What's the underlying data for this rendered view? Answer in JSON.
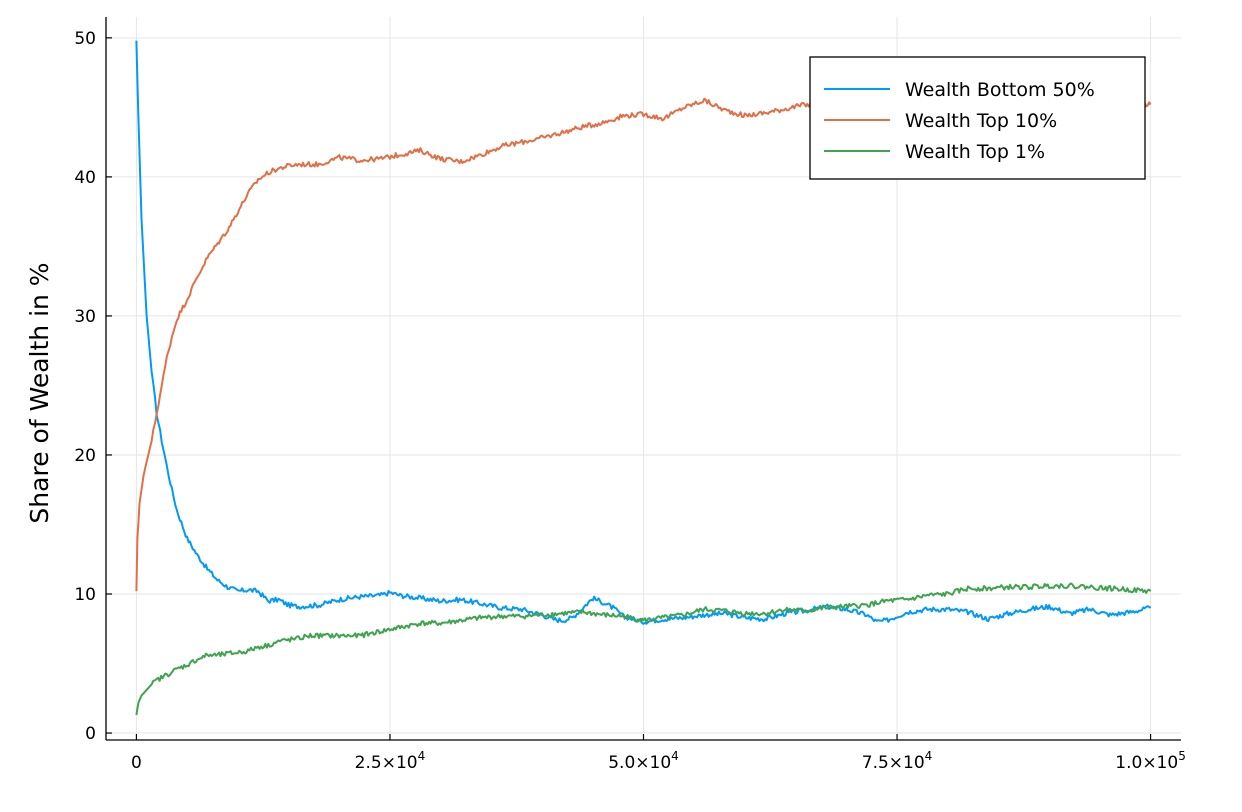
{
  "chart_data": {
    "type": "line",
    "title": "",
    "xlabel": "",
    "ylabel": "Share of Wealth in %",
    "xlim": [
      -3000,
      103000
    ],
    "ylim": [
      -0.5,
      51.5
    ],
    "grid": true,
    "legend_position": "top-right",
    "x_ticks": [
      {
        "value": 0,
        "base": "0",
        "exp": ""
      },
      {
        "value": 25000,
        "base": "2.5×10",
        "exp": "4"
      },
      {
        "value": 50000,
        "base": "5.0×10",
        "exp": "4"
      },
      {
        "value": 75000,
        "base": "7.5×10",
        "exp": "4"
      },
      {
        "value": 100000,
        "base": "1.0×10",
        "exp": "5"
      }
    ],
    "y_ticks": [
      {
        "value": 0,
        "label": "0"
      },
      {
        "value": 10,
        "label": "10"
      },
      {
        "value": 20,
        "label": "20"
      },
      {
        "value": 30,
        "label": "30"
      },
      {
        "value": 40,
        "label": "40"
      },
      {
        "value": 50,
        "label": "50"
      }
    ],
    "series": [
      {
        "name": "Wealth Bottom 50%",
        "color": "#009AF9",
        "x": [
          0,
          200,
          500,
          1000,
          1500,
          2000,
          2500,
          3000,
          3500,
          4000,
          5000,
          6000,
          7000,
          8000,
          9000,
          10000,
          11000,
          12000,
          13000,
          14000,
          15000,
          16000,
          18000,
          20000,
          22000,
          24000,
          25000,
          26000,
          28000,
          30000,
          32000,
          34000,
          36000,
          38000,
          40000,
          41000,
          42000,
          43000,
          44000,
          45000,
          46000,
          47000,
          48000,
          49000,
          50000,
          52000,
          54000,
          56000,
          58000,
          60000,
          62000,
          64000,
          66000,
          68000,
          70000,
          72000,
          73000,
          74000,
          76000,
          78000,
          80000,
          82000,
          84000,
          86000,
          88000,
          90000,
          92000,
          94000,
          96000,
          98000,
          100000
        ],
        "y": [
          49.8,
          44,
          37,
          30,
          26,
          23,
          21,
          19.2,
          17.5,
          16,
          14,
          12.8,
          11.8,
          11,
          10.5,
          10.2,
          10.3,
          10.2,
          9.5,
          9.6,
          9.2,
          9.1,
          9.2,
          9.6,
          9.8,
          9.9,
          10.1,
          9.9,
          9.7,
          9.5,
          9.6,
          9.3,
          9.0,
          8.9,
          8.5,
          8.2,
          8.1,
          8.3,
          9.0,
          9.7,
          9.4,
          9.0,
          8.4,
          8.2,
          8.0,
          8.2,
          8.3,
          8.5,
          8.6,
          8.3,
          8.2,
          8.6,
          8.8,
          9.1,
          8.9,
          8.5,
          8.0,
          8.1,
          8.7,
          8.9,
          8.9,
          8.7,
          8.2,
          8.6,
          8.9,
          9.1,
          8.6,
          8.9,
          8.5,
          8.7,
          9.0
        ]
      },
      {
        "name": "Wealth Top 10%",
        "color": "#E26F46",
        "x": [
          0,
          100,
          300,
          700,
          1000,
          1500,
          2000,
          2500,
          3000,
          3500,
          4000,
          5000,
          6000,
          7000,
          8000,
          9000,
          10000,
          11000,
          12000,
          13000,
          14000,
          15000,
          16000,
          18000,
          20000,
          22000,
          24000,
          26000,
          28000,
          30000,
          32000,
          34000,
          36000,
          38000,
          40000,
          42000,
          44000,
          46000,
          48000,
          50000,
          52000,
          54000,
          56000,
          58000,
          60000,
          62000,
          64000,
          66000,
          68000,
          70000,
          72000,
          74000,
          76000,
          78000,
          80000,
          82000,
          84000,
          86000,
          88000,
          90000,
          92000,
          94000,
          96000,
          98000,
          100000
        ],
        "y": [
          10.2,
          14,
          16.5,
          18.5,
          19.5,
          21,
          23,
          25,
          27,
          28.5,
          29.8,
          31.2,
          32.8,
          34.2,
          35.2,
          36.2,
          37.5,
          38.8,
          39.8,
          40.3,
          40.6,
          40.8,
          40.9,
          40.9,
          41.4,
          41.2,
          41.3,
          41.6,
          41.9,
          41.3,
          41.1,
          41.6,
          42.2,
          42.5,
          42.8,
          43.2,
          43.6,
          43.9,
          44.4,
          44.5,
          44.2,
          45.0,
          45.5,
          44.8,
          44.4,
          44.6,
          44.9,
          45.2,
          44.9,
          45.3,
          45.5,
          45.2,
          45.8,
          45.4,
          45.9,
          46.1,
          45.7,
          45.3,
          45.8,
          45.6,
          45.9,
          46.2,
          45.6,
          45.3,
          45.2
        ]
      },
      {
        "name": "Wealth Top 1%",
        "color": "#3EA44E",
        "x": [
          0,
          200,
          500,
          1000,
          1500,
          2000,
          3000,
          4000,
          5000,
          6000,
          7000,
          8000,
          9000,
          10000,
          11000,
          12000,
          13000,
          14000,
          15000,
          16000,
          17000,
          18000,
          20000,
          22000,
          24000,
          26000,
          28000,
          30000,
          32000,
          34000,
          36000,
          38000,
          40000,
          42000,
          44000,
          46000,
          48000,
          50000,
          52000,
          54000,
          56000,
          58000,
          60000,
          62000,
          64000,
          66000,
          68000,
          70000,
          72000,
          74000,
          76000,
          78000,
          80000,
          82000,
          84000,
          86000,
          88000,
          90000,
          92000,
          94000,
          96000,
          98000,
          100000
        ],
        "y": [
          1.3,
          2.2,
          2.7,
          3.1,
          3.5,
          3.8,
          4.2,
          4.6,
          4.9,
          5.3,
          5.6,
          5.6,
          5.7,
          5.8,
          5.9,
          6.2,
          6.3,
          6.6,
          6.7,
          6.8,
          7.0,
          7.0,
          7.0,
          7.0,
          7.3,
          7.6,
          7.9,
          7.9,
          8.1,
          8.3,
          8.4,
          8.4,
          8.5,
          8.6,
          8.7,
          8.5,
          8.4,
          8.1,
          8.3,
          8.5,
          8.9,
          8.8,
          8.6,
          8.6,
          8.9,
          8.8,
          9.0,
          9.1,
          9.2,
          9.5,
          9.6,
          9.9,
          10.0,
          10.4,
          10.4,
          10.5,
          10.5,
          10.6,
          10.6,
          10.5,
          10.4,
          10.3,
          10.2
        ]
      }
    ]
  }
}
